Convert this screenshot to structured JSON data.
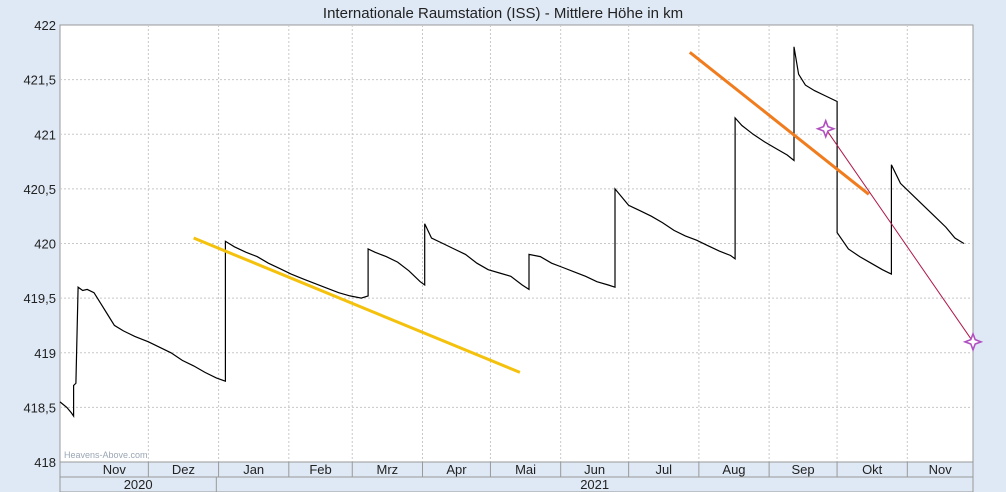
{
  "chart_data": {
    "type": "line",
    "title": "Internationale Raumstation (ISS) - Mittlere Höhe in km",
    "ylabel": "",
    "xlabel": "",
    "ylim": [
      418,
      422
    ],
    "yticks": [
      {
        "value": 422,
        "label": "422"
      },
      {
        "value": 421.5,
        "label": "421,5"
      },
      {
        "value": 421,
        "label": "421"
      },
      {
        "value": 420.5,
        "label": "420,5"
      },
      {
        "value": 420,
        "label": "420"
      },
      {
        "value": 419.5,
        "label": "419,5"
      },
      {
        "value": 419,
        "label": "419"
      },
      {
        "value": 418.5,
        "label": "418,5"
      },
      {
        "value": 418,
        "label": "418"
      }
    ],
    "xlim": [
      "2020-10-23",
      "2021-11-30"
    ],
    "months": [
      {
        "label": "Nov",
        "start": "2020-11-01",
        "end": "2020-12-01"
      },
      {
        "label": "Dez",
        "start": "2020-12-01",
        "end": "2021-01-01"
      },
      {
        "label": "Jan",
        "start": "2021-01-01",
        "end": "2021-02-01"
      },
      {
        "label": "Feb",
        "start": "2021-02-01",
        "end": "2021-03-01"
      },
      {
        "label": "Mrz",
        "start": "2021-03-01",
        "end": "2021-04-01"
      },
      {
        "label": "Apr",
        "start": "2021-04-01",
        "end": "2021-05-01"
      },
      {
        "label": "Mai",
        "start": "2021-05-01",
        "end": "2021-06-01"
      },
      {
        "label": "Jun",
        "start": "2021-06-01",
        "end": "2021-07-01"
      },
      {
        "label": "Jul",
        "start": "2021-07-01",
        "end": "2021-08-01"
      },
      {
        "label": "Aug",
        "start": "2021-08-01",
        "end": "2021-09-01"
      },
      {
        "label": "Sep",
        "start": "2021-09-01",
        "end": "2021-10-01"
      },
      {
        "label": "Okt",
        "start": "2021-10-01",
        "end": "2021-11-01"
      },
      {
        "label": "Nov",
        "start": "2021-11-01",
        "end": "2021-11-30"
      }
    ],
    "years": [
      {
        "label": "2020",
        "start": "2020-10-23",
        "end": "2020-12-31"
      },
      {
        "label": "2021",
        "start": "2020-12-31",
        "end": "2021-11-30"
      }
    ],
    "grid": true,
    "series": [
      {
        "color": "#000000",
        "points": [
          [
            "2020-10-23",
            418.55
          ],
          [
            "2020-10-26",
            418.5
          ],
          [
            "2020-10-28",
            418.45
          ],
          [
            "2020-10-29",
            418.42
          ],
          [
            "2020-10-29",
            418.7
          ],
          [
            "2020-10-30",
            418.72
          ],
          [
            "2020-10-31",
            419.6
          ],
          [
            "2020-11-02",
            419.57
          ],
          [
            "2020-11-04",
            419.58
          ],
          [
            "2020-11-07",
            419.55
          ],
          [
            "2020-11-10",
            419.45
          ],
          [
            "2020-11-13",
            419.35
          ],
          [
            "2020-11-16",
            419.25
          ],
          [
            "2020-11-20",
            419.2
          ],
          [
            "2020-11-25",
            419.15
          ],
          [
            "2020-12-01",
            419.1
          ],
          [
            "2020-12-06",
            419.05
          ],
          [
            "2020-12-11",
            419.0
          ],
          [
            "2020-12-16",
            418.93
          ],
          [
            "2020-12-21",
            418.88
          ],
          [
            "2020-12-26",
            418.82
          ],
          [
            "2020-12-31",
            418.77
          ],
          [
            "2021-01-04",
            418.74
          ],
          [
            "2021-01-04",
            420.02
          ],
          [
            "2021-01-08",
            419.97
          ],
          [
            "2021-01-13",
            419.92
          ],
          [
            "2021-01-18",
            419.88
          ],
          [
            "2021-01-23",
            419.82
          ],
          [
            "2021-01-28",
            419.77
          ],
          [
            "2021-02-02",
            419.72
          ],
          [
            "2021-02-08",
            419.67
          ],
          [
            "2021-02-13",
            419.63
          ],
          [
            "2021-02-18",
            419.59
          ],
          [
            "2021-02-23",
            419.55
          ],
          [
            "2021-02-28",
            419.52
          ],
          [
            "2021-03-05",
            419.5
          ],
          [
            "2021-03-08",
            419.52
          ],
          [
            "2021-03-08",
            419.95
          ],
          [
            "2021-03-11",
            419.92
          ],
          [
            "2021-03-16",
            419.88
          ],
          [
            "2021-03-21",
            419.83
          ],
          [
            "2021-03-26",
            419.75
          ],
          [
            "2021-03-31",
            419.65
          ],
          [
            "2021-04-02",
            419.62
          ],
          [
            "2021-04-02",
            420.18
          ],
          [
            "2021-04-05",
            420.05
          ],
          [
            "2021-04-10",
            420.0
          ],
          [
            "2021-04-15",
            419.95
          ],
          [
            "2021-04-20",
            419.9
          ],
          [
            "2021-04-25",
            419.82
          ],
          [
            "2021-04-30",
            419.76
          ],
          [
            "2021-05-05",
            419.73
          ],
          [
            "2021-05-10",
            419.7
          ],
          [
            "2021-05-15",
            419.62
          ],
          [
            "2021-05-18",
            419.58
          ],
          [
            "2021-05-18",
            419.9
          ],
          [
            "2021-05-23",
            419.88
          ],
          [
            "2021-05-28",
            419.82
          ],
          [
            "2021-06-02",
            419.78
          ],
          [
            "2021-06-07",
            419.74
          ],
          [
            "2021-06-12",
            419.7
          ],
          [
            "2021-06-17",
            419.65
          ],
          [
            "2021-06-22",
            419.62
          ],
          [
            "2021-06-25",
            419.6
          ],
          [
            "2021-06-25",
            420.5
          ],
          [
            "2021-07-01",
            420.35
          ],
          [
            "2021-07-06",
            420.3
          ],
          [
            "2021-07-11",
            420.25
          ],
          [
            "2021-07-16",
            420.19
          ],
          [
            "2021-07-21",
            420.12
          ],
          [
            "2021-07-26",
            420.07
          ],
          [
            "2021-07-31",
            420.03
          ],
          [
            "2021-08-05",
            419.98
          ],
          [
            "2021-08-10",
            419.93
          ],
          [
            "2021-08-15",
            419.89
          ],
          [
            "2021-08-17",
            419.86
          ],
          [
            "2021-08-17",
            421.15
          ],
          [
            "2021-08-20",
            421.08
          ],
          [
            "2021-08-25",
            421.0
          ],
          [
            "2021-08-30",
            420.93
          ],
          [
            "2021-09-04",
            420.87
          ],
          [
            "2021-09-09",
            420.81
          ],
          [
            "2021-09-12",
            420.76
          ],
          [
            "2021-09-12",
            421.8
          ],
          [
            "2021-09-14",
            421.55
          ],
          [
            "2021-09-17",
            421.45
          ],
          [
            "2021-09-21",
            421.4
          ],
          [
            "2021-09-26",
            421.35
          ],
          [
            "2021-10-01",
            421.3
          ],
          [
            "2021-10-01",
            420.1
          ],
          [
            "2021-10-06",
            419.95
          ],
          [
            "2021-10-11",
            419.88
          ],
          [
            "2021-10-16",
            419.82
          ],
          [
            "2021-10-21",
            419.76
          ],
          [
            "2021-10-25",
            419.72
          ],
          [
            "2021-10-25",
            420.72
          ],
          [
            "2021-10-29",
            420.55
          ],
          [
            "2021-11-03",
            420.45
          ],
          [
            "2021-11-08",
            420.35
          ],
          [
            "2021-11-13",
            420.25
          ],
          [
            "2021-11-18",
            420.15
          ],
          [
            "2021-11-22",
            420.05
          ],
          [
            "2021-11-26",
            420.0
          ]
        ]
      }
    ],
    "trend_lines": [
      {
        "color": "#f4c20d",
        "points": [
          [
            "2020-12-21",
            420.05
          ],
          [
            "2021-05-14",
            418.82
          ]
        ]
      },
      {
        "color": "#f07c1e",
        "points": [
          [
            "2021-07-28",
            421.75
          ],
          [
            "2021-10-15",
            420.45
          ]
        ]
      },
      {
        "color": "#b01848",
        "points": [
          [
            "2021-09-26",
            421.05
          ],
          [
            "2021-11-30",
            419.1
          ]
        ]
      }
    ],
    "markers": [
      {
        "date": "2021-09-26",
        "value": 421.05,
        "color": "#b050c0"
      },
      {
        "date": "2021-11-30",
        "value": 419.1,
        "color": "#b050c0"
      }
    ],
    "watermark": "Heavens-Above.com"
  }
}
